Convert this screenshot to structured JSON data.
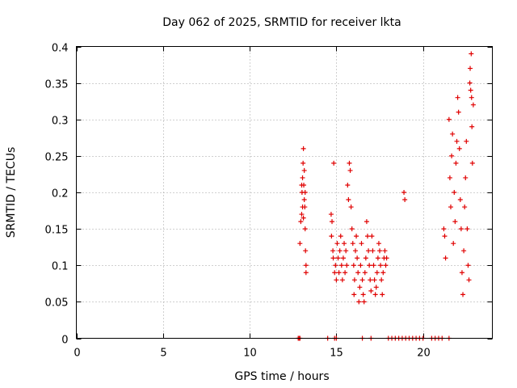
{
  "chart_data": {
    "type": "scatter",
    "title": "Day 062 of 2025, SRMTID for receiver lkta",
    "xlabel": "GPS time / hours",
    "ylabel": "SRMTID / TECUs",
    "xlim": [
      0,
      24
    ],
    "ylim": [
      0,
      0.4
    ],
    "xticks": [
      0,
      5,
      10,
      15,
      20
    ],
    "xtick_labels": [
      "0",
      "5",
      "10",
      "15",
      "20"
    ],
    "yticks": [
      0,
      0.05,
      0.1,
      0.15,
      0.2,
      0.25,
      0.3,
      0.35,
      0.4
    ],
    "ytick_labels": [
      "0",
      "0.05",
      "0.1",
      "0.15",
      "0.2",
      "0.25",
      "0.3",
      "0.35",
      "0.4"
    ],
    "grid": true,
    "marker": "+",
    "series": [
      {
        "color": "#e00000",
        "points": [
          [
            12.9,
            0.13
          ],
          [
            12.95,
            0.16
          ],
          [
            13.0,
            0.17
          ],
          [
            13.02,
            0.2
          ],
          [
            13.05,
            0.22
          ],
          [
            13.08,
            0.24
          ],
          [
            13.1,
            0.26
          ],
          [
            13.12,
            0.21
          ],
          [
            13.15,
            0.19
          ],
          [
            13.18,
            0.18
          ],
          [
            13.2,
            0.15
          ],
          [
            13.22,
            0.12
          ],
          [
            13.25,
            0.1
          ],
          [
            13.25,
            0.09
          ],
          [
            13.15,
            0.23
          ],
          [
            13.05,
            0.18
          ],
          [
            13.1,
            0.165
          ],
          [
            13.0,
            0.21
          ],
          [
            13.2,
            0.2
          ],
          [
            14.7,
            0.17
          ],
          [
            14.72,
            0.14
          ],
          [
            14.75,
            0.16
          ],
          [
            14.8,
            0.12
          ],
          [
            14.82,
            0.11
          ],
          [
            14.85,
            0.24
          ],
          [
            14.9,
            0.09
          ],
          [
            14.95,
            0.1
          ],
          [
            15.0,
            0.08
          ],
          [
            15.05,
            0.13
          ],
          [
            15.1,
            0.11
          ],
          [
            15.15,
            0.09
          ],
          [
            15.2,
            0.12
          ],
          [
            15.25,
            0.14
          ],
          [
            15.3,
            0.1
          ],
          [
            15.35,
            0.08
          ],
          [
            15.4,
            0.11
          ],
          [
            15.45,
            0.13
          ],
          [
            15.5,
            0.09
          ],
          [
            15.55,
            0.12
          ],
          [
            15.6,
            0.1
          ],
          [
            15.65,
            0.21
          ],
          [
            15.7,
            0.19
          ],
          [
            15.75,
            0.24
          ],
          [
            15.8,
            0.23
          ],
          [
            15.85,
            0.18
          ],
          [
            15.9,
            0.15
          ],
          [
            15.95,
            0.13
          ],
          [
            16.0,
            0.1
          ],
          [
            16.02,
            0.06
          ],
          [
            16.05,
            0.08
          ],
          [
            16.1,
            0.12
          ],
          [
            16.15,
            0.14
          ],
          [
            16.2,
            0.11
          ],
          [
            16.25,
            0.09
          ],
          [
            16.3,
            0.05
          ],
          [
            16.35,
            0.07
          ],
          [
            16.4,
            0.1
          ],
          [
            16.45,
            0.13
          ],
          [
            16.5,
            0.08
          ],
          [
            16.55,
            0.06
          ],
          [
            16.6,
            0.05
          ],
          [
            16.65,
            0.09
          ],
          [
            16.7,
            0.11
          ],
          [
            16.75,
            0.16
          ],
          [
            16.8,
            0.14
          ],
          [
            16.85,
            0.12
          ],
          [
            16.9,
            0.1
          ],
          [
            16.95,
            0.08
          ],
          [
            17.0,
            0.065
          ],
          [
            17.05,
            0.14
          ],
          [
            17.1,
            0.12
          ],
          [
            17.15,
            0.1
          ],
          [
            17.2,
            0.08
          ],
          [
            17.25,
            0.06
          ],
          [
            17.3,
            0.07
          ],
          [
            17.35,
            0.09
          ],
          [
            17.4,
            0.11
          ],
          [
            17.45,
            0.13
          ],
          [
            17.5,
            0.12
          ],
          [
            17.55,
            0.1
          ],
          [
            17.6,
            0.08
          ],
          [
            17.65,
            0.06
          ],
          [
            17.7,
            0.09
          ],
          [
            17.75,
            0.11
          ],
          [
            17.8,
            0.12
          ],
          [
            17.85,
            0.1
          ],
          [
            17.9,
            0.11
          ],
          [
            18.9,
            0.2
          ],
          [
            18.95,
            0.19
          ],
          [
            21.2,
            0.15
          ],
          [
            21.25,
            0.14
          ],
          [
            21.3,
            0.11
          ],
          [
            21.5,
            0.3
          ],
          [
            21.55,
            0.22
          ],
          [
            21.6,
            0.18
          ],
          [
            21.65,
            0.25
          ],
          [
            21.7,
            0.28
          ],
          [
            21.75,
            0.13
          ],
          [
            21.8,
            0.2
          ],
          [
            21.85,
            0.16
          ],
          [
            21.9,
            0.24
          ],
          [
            21.95,
            0.27
          ],
          [
            22.0,
            0.33
          ],
          [
            22.05,
            0.31
          ],
          [
            22.1,
            0.26
          ],
          [
            22.15,
            0.19
          ],
          [
            22.2,
            0.15
          ],
          [
            22.25,
            0.09
          ],
          [
            22.3,
            0.06
          ],
          [
            22.35,
            0.12
          ],
          [
            22.4,
            0.18
          ],
          [
            22.45,
            0.22
          ],
          [
            22.5,
            0.27
          ],
          [
            22.55,
            0.15
          ],
          [
            22.6,
            0.1
          ],
          [
            22.65,
            0.08
          ],
          [
            22.7,
            0.35
          ],
          [
            22.72,
            0.37
          ],
          [
            22.75,
            0.34
          ],
          [
            22.78,
            0.39
          ],
          [
            22.8,
            0.33
          ],
          [
            22.82,
            0.29
          ],
          [
            22.85,
            0.24
          ],
          [
            22.9,
            0.32
          ],
          [
            12.8,
            0.0
          ],
          [
            12.85,
            0.0
          ],
          [
            12.9,
            0.0
          ],
          [
            14.5,
            0.0
          ],
          [
            14.9,
            0.0
          ],
          [
            15.0,
            0.0
          ],
          [
            16.5,
            0.0
          ],
          [
            17.0,
            0.0
          ],
          [
            18.0,
            0.0
          ],
          [
            18.2,
            0.0
          ],
          [
            18.4,
            0.0
          ],
          [
            18.6,
            0.0
          ],
          [
            18.8,
            0.0
          ],
          [
            19.0,
            0.0
          ],
          [
            19.2,
            0.0
          ],
          [
            19.4,
            0.0
          ],
          [
            19.6,
            0.0
          ],
          [
            19.8,
            0.0
          ],
          [
            20.0,
            0.0
          ],
          [
            20.5,
            0.0
          ],
          [
            20.7,
            0.0
          ],
          [
            20.9,
            0.0
          ],
          [
            21.1,
            0.0
          ],
          [
            21.5,
            0.0
          ]
        ]
      }
    ]
  }
}
